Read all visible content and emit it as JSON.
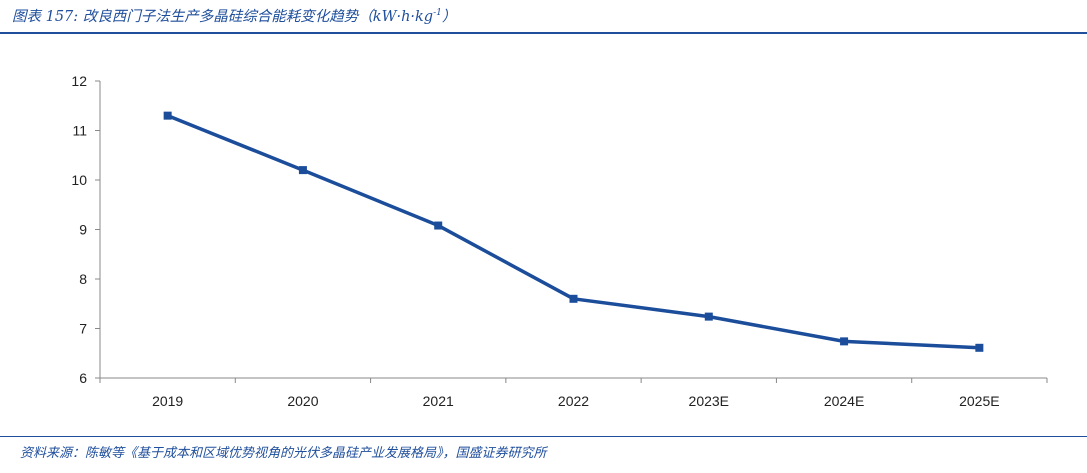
{
  "header": {
    "title": "图表 157:  改良西门子法生产多晶硅综合能耗变化趋势（kW·h·kg",
    "title_sup": "-1",
    "title_end": "）"
  },
  "footer": {
    "source": "资料来源：陈敏等《基于成本和区域优势视角的光伏多晶硅产业发展格局》，国盛证券研究所"
  },
  "colors": {
    "series": "#1b4d9b",
    "accent": "#1f4e9c"
  },
  "chart_data": {
    "type": "line",
    "title": "",
    "xlabel": "",
    "ylabel": "",
    "categories": [
      "2019",
      "2020",
      "2021",
      "2022",
      "2023E",
      "2024E",
      "2025E"
    ],
    "series": [
      {
        "values": [
          11.3,
          10.2,
          9.08,
          7.6,
          7.24,
          6.74,
          6.61
        ]
      }
    ],
    "ylim": [
      6,
      12
    ],
    "yticks": [
      6,
      7,
      8,
      9,
      10,
      11,
      12
    ],
    "grid": false,
    "legend": "none"
  }
}
